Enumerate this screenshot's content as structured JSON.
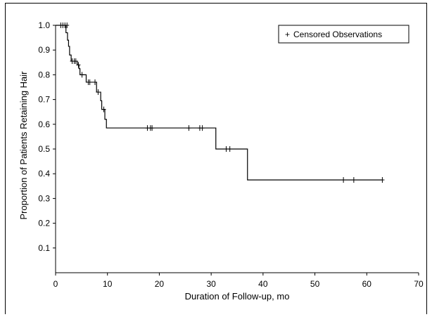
{
  "chart_data": {
    "type": "line",
    "title": "",
    "xlabel": "Duration of Follow-up, mo",
    "ylabel": "Proportion of Patients Retaining Hair",
    "xlim": [
      0,
      70
    ],
    "ylim": [
      0,
      1.0
    ],
    "x_ticks": [
      0,
      10,
      20,
      30,
      40,
      50,
      60,
      70
    ],
    "y_ticks": [
      0.1,
      0.2,
      0.3,
      0.4,
      0.5,
      0.6,
      0.7,
      0.8,
      0.9,
      1.0
    ],
    "y_tick_labels": [
      "0.1",
      "0.2",
      "0.3",
      "0.4",
      "0.5",
      "0.6",
      "0.7",
      "0.8",
      "0.9",
      "1.0"
    ],
    "grid": false,
    "step": true,
    "series": [
      {
        "kind": "kaplan-meier",
        "color": "#000000",
        "steps": [
          [
            0,
            1.0
          ],
          [
            2.0,
            0.97
          ],
          [
            2.3,
            0.94
          ],
          [
            2.5,
            0.915
          ],
          [
            2.7,
            0.88
          ],
          [
            3.0,
            0.855
          ],
          [
            4.2,
            0.84
          ],
          [
            4.5,
            0.825
          ],
          [
            4.7,
            0.8
          ],
          [
            5.9,
            0.77
          ],
          [
            7.9,
            0.73
          ],
          [
            8.7,
            0.695
          ],
          [
            8.9,
            0.66
          ],
          [
            9.5,
            0.62
          ],
          [
            9.8,
            0.585
          ],
          [
            30.9,
            0.5
          ],
          [
            37.0,
            0.375
          ]
        ],
        "x_end": 63,
        "censored": [
          [
            1.0,
            1.0
          ],
          [
            1.4,
            1.0
          ],
          [
            1.8,
            1.0
          ],
          [
            2.2,
            1.0
          ],
          [
            3.2,
            0.855
          ],
          [
            3.6,
            0.855
          ],
          [
            3.9,
            0.855
          ],
          [
            4.4,
            0.84
          ],
          [
            5.1,
            0.8
          ],
          [
            6.3,
            0.77
          ],
          [
            6.6,
            0.77
          ],
          [
            7.6,
            0.77
          ],
          [
            8.2,
            0.73
          ],
          [
            9.3,
            0.66
          ],
          [
            17.7,
            0.585
          ],
          [
            18.3,
            0.585
          ],
          [
            18.6,
            0.585
          ],
          [
            25.7,
            0.585
          ],
          [
            27.8,
            0.585
          ],
          [
            28.3,
            0.585
          ],
          [
            32.9,
            0.5
          ],
          [
            33.6,
            0.5
          ],
          [
            55.5,
            0.375
          ],
          [
            57.5,
            0.375
          ],
          [
            63.0,
            0.375
          ]
        ]
      }
    ],
    "legend": {
      "position": "top-right",
      "symbol": "+",
      "label": "Censored Observations"
    }
  }
}
